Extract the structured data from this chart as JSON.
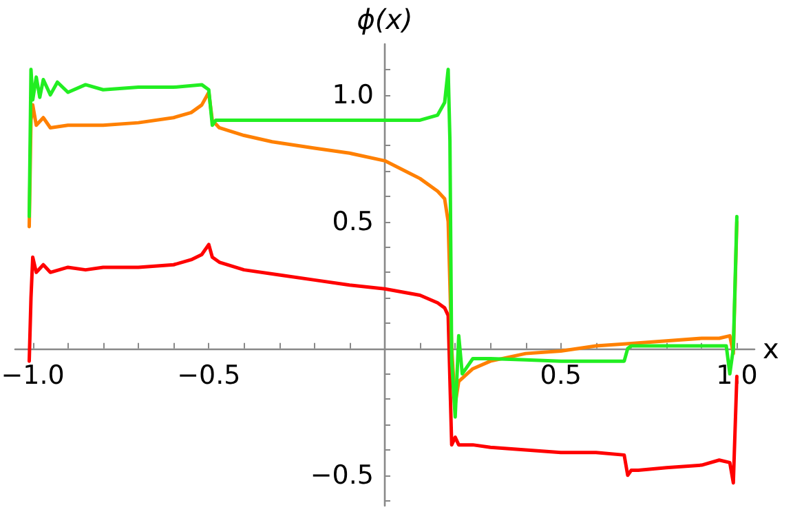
{
  "chart_data": {
    "type": "line",
    "xlabel": "x",
    "ylabel": "ϕ(x)",
    "xlim": [
      -1.05,
      1.05
    ],
    "ylim": [
      -0.62,
      1.2
    ],
    "xticks": [
      {
        "value": -1.0,
        "label": "−1.0"
      },
      {
        "value": -0.9,
        "label": null
      },
      {
        "value": -0.8,
        "label": null
      },
      {
        "value": -0.7,
        "label": null
      },
      {
        "value": -0.6,
        "label": null
      },
      {
        "value": -0.5,
        "label": "−0.5"
      },
      {
        "value": -0.4,
        "label": null
      },
      {
        "value": -0.3,
        "label": null
      },
      {
        "value": -0.2,
        "label": null
      },
      {
        "value": -0.1,
        "label": null
      },
      {
        "value": 0.1,
        "label": null
      },
      {
        "value": 0.2,
        "label": null
      },
      {
        "value": 0.3,
        "label": null
      },
      {
        "value": 0.4,
        "label": null
      },
      {
        "value": 0.5,
        "label": "0.5"
      },
      {
        "value": 0.6,
        "label": null
      },
      {
        "value": 0.7,
        "label": null
      },
      {
        "value": 0.8,
        "label": null
      },
      {
        "value": 0.9,
        "label": null
      },
      {
        "value": 1.0,
        "label": "1.0"
      }
    ],
    "yticks": [
      {
        "value": -0.6,
        "label": null
      },
      {
        "value": -0.5,
        "label": "−0.5"
      },
      {
        "value": -0.4,
        "label": null
      },
      {
        "value": -0.3,
        "label": null
      },
      {
        "value": -0.2,
        "label": null
      },
      {
        "value": -0.1,
        "label": null
      },
      {
        "value": 0.1,
        "label": null
      },
      {
        "value": 0.2,
        "label": null
      },
      {
        "value": 0.3,
        "label": null
      },
      {
        "value": 0.4,
        "label": null
      },
      {
        "value": 0.5,
        "label": "0.5"
      },
      {
        "value": 0.6,
        "label": null
      },
      {
        "value": 0.7,
        "label": null
      },
      {
        "value": 0.8,
        "label": null
      },
      {
        "value": 0.9,
        "label": null
      },
      {
        "value": 1.0,
        "label": "1.0"
      },
      {
        "value": 1.1,
        "label": null
      }
    ],
    "grid": false,
    "series": [
      {
        "color": "#ff0000",
        "x": [
          -1.01,
          -1.005,
          -1.0,
          -0.99,
          -0.97,
          -0.95,
          -0.9,
          -0.85,
          -0.8,
          -0.7,
          -0.6,
          -0.55,
          -0.52,
          -0.5,
          -0.49,
          -0.47,
          -0.4,
          -0.3,
          -0.2,
          -0.1,
          0.0,
          0.1,
          0.15,
          0.17,
          0.18,
          0.19,
          0.2,
          0.21,
          0.25,
          0.3,
          0.4,
          0.5,
          0.6,
          0.68,
          0.69,
          0.7,
          0.72,
          0.8,
          0.9,
          0.95,
          0.98,
          0.99,
          1.0
        ],
        "values": [
          -0.05,
          0.2,
          0.36,
          0.3,
          0.33,
          0.3,
          0.32,
          0.31,
          0.32,
          0.32,
          0.33,
          0.35,
          0.37,
          0.41,
          0.36,
          0.34,
          0.31,
          0.29,
          0.27,
          0.25,
          0.235,
          0.21,
          0.18,
          0.16,
          0.13,
          -0.38,
          -0.35,
          -0.38,
          -0.38,
          -0.39,
          -0.4,
          -0.41,
          -0.41,
          -0.42,
          -0.5,
          -0.48,
          -0.48,
          -0.47,
          -0.46,
          -0.44,
          -0.45,
          -0.53,
          -0.11
        ]
      },
      {
        "color": "#ff8000",
        "x": [
          -1.01,
          -1.005,
          -1.0,
          -0.99,
          -0.97,
          -0.95,
          -0.9,
          -0.8,
          -0.7,
          -0.6,
          -0.55,
          -0.52,
          -0.5,
          -0.49,
          -0.47,
          -0.4,
          -0.32,
          -0.2,
          -0.1,
          0.0,
          0.1,
          0.15,
          0.17,
          0.18,
          0.19,
          0.2,
          0.21,
          0.25,
          0.3,
          0.4,
          0.5,
          0.6,
          0.7,
          0.8,
          0.9,
          0.95,
          0.98,
          0.99,
          1.0
        ],
        "values": [
          0.48,
          0.9,
          0.96,
          0.88,
          0.91,
          0.87,
          0.88,
          0.88,
          0.89,
          0.91,
          0.93,
          0.96,
          1.01,
          0.9,
          0.87,
          0.84,
          0.815,
          0.79,
          0.77,
          0.74,
          0.67,
          0.62,
          0.59,
          0.5,
          0.0,
          -0.22,
          -0.13,
          -0.08,
          -0.05,
          -0.02,
          -0.01,
          0.01,
          0.02,
          0.03,
          0.04,
          0.04,
          0.05,
          -0.02,
          0.5
        ]
      },
      {
        "color": "#22ee22",
        "x": [
          -1.01,
          -1.005,
          -1.0,
          -0.99,
          -0.98,
          -0.97,
          -0.95,
          -0.93,
          -0.9,
          -0.85,
          -0.8,
          -0.7,
          -0.6,
          -0.52,
          -0.5,
          -0.49,
          -0.48,
          -0.4,
          -0.2,
          0.0,
          0.1,
          0.15,
          0.17,
          0.18,
          0.185,
          0.19,
          0.2,
          0.21,
          0.22,
          0.25,
          0.3,
          0.4,
          0.5,
          0.6,
          0.68,
          0.69,
          0.7,
          0.8,
          0.9,
          0.97,
          0.98,
          0.99,
          1.0
        ],
        "values": [
          0.52,
          1.1,
          0.98,
          1.07,
          0.99,
          1.06,
          1.0,
          1.05,
          1.01,
          1.04,
          1.02,
          1.03,
          1.03,
          1.04,
          1.02,
          0.88,
          0.9,
          0.9,
          0.9,
          0.9,
          0.9,
          0.92,
          0.97,
          1.1,
          0.82,
          -0.05,
          -0.27,
          0.05,
          -0.1,
          -0.04,
          -0.04,
          -0.045,
          -0.05,
          -0.05,
          -0.05,
          0.0,
          0.01,
          0.01,
          0.01,
          0.01,
          -0.1,
          0.0,
          0.52
        ]
      }
    ]
  }
}
